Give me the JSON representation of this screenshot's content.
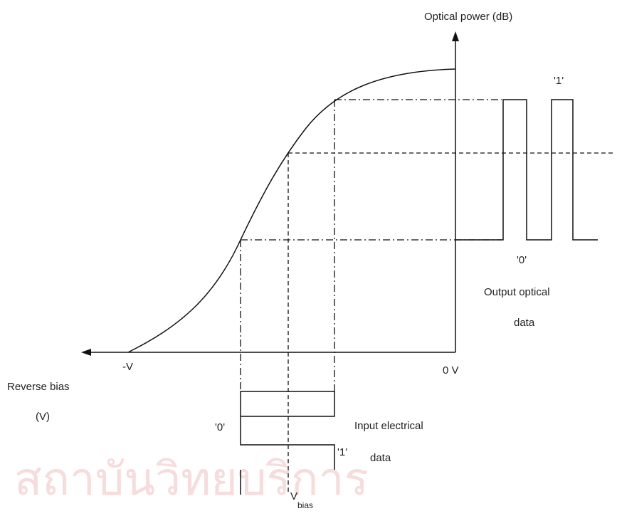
{
  "y_axis_label": "Optical power (dB)",
  "x_axis_label": [
    "Reverse bias",
    "(V)"
  ],
  "x_ticks": [
    "-V",
    "0 V"
  ],
  "output": {
    "one": "'1'",
    "zero": "'0'",
    "label": [
      "Output optical",
      "data"
    ]
  },
  "input": {
    "zero": "'0'",
    "one": "'1'",
    "label": [
      "Input electrical",
      "data"
    ]
  },
  "bias": {
    "main": "V",
    "sub": "bias"
  },
  "watermark": "สถาบันวิทยบริการ"
}
